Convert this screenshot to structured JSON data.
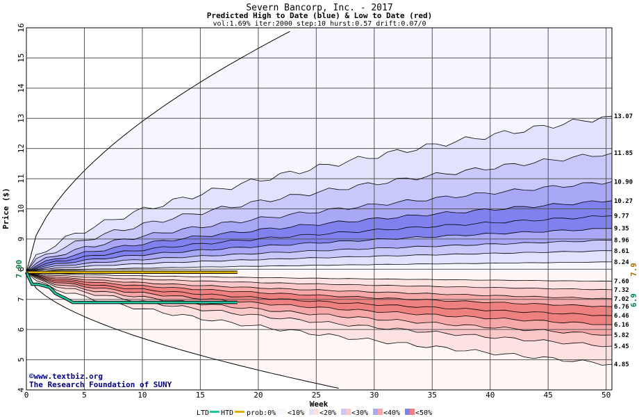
{
  "chart_data": {
    "type": "area",
    "title": "Severn Bancorp, Inc. - 2017",
    "subtitle": "Predicted High to Date (blue) &  Low to Date (red)",
    "params": "vol:1.69% iter:2000 step:10 hurst:0.57 drift:0.07/0",
    "xlabel": "Week",
    "ylabel": "Price ($)",
    "xlim": [
      0,
      50.5
    ],
    "ylim": [
      4,
      16
    ],
    "x_ticks": [
      "0",
      "5",
      "10",
      "15",
      "20",
      "25",
      "30",
      "35",
      "40",
      "45",
      "50"
    ],
    "y_ticks": [
      "4",
      "5",
      "6",
      "7",
      "8",
      "9",
      "10",
      "11",
      "12",
      "13",
      "14",
      "15",
      "16"
    ],
    "start_price": 7.9,
    "start_label": "7.90",
    "high_percentile_endpoints": [
      {
        "label": "13.07",
        "value": 13.07
      },
      {
        "label": "11.85",
        "value": 11.85
      },
      {
        "label": "10.90",
        "value": 10.9
      },
      {
        "label": "10.27",
        "value": 10.27
      },
      {
        "label": "9.77",
        "value": 9.77
      },
      {
        "label": "9.35",
        "value": 9.35
      },
      {
        "label": "8.96",
        "value": 8.96
      },
      {
        "label": "8.61",
        "value": 8.61
      },
      {
        "label": "8.24",
        "value": 8.24
      }
    ],
    "low_percentile_endpoints": [
      {
        "label": "7.60",
        "value": 7.6
      },
      {
        "label": "7.32",
        "value": 7.32
      },
      {
        "label": "7.02",
        "value": 7.02
      },
      {
        "label": "6.76",
        "value": 6.76
      },
      {
        "label": "6.46",
        "value": 6.46
      },
      {
        "label": "6.16",
        "value": 6.16
      },
      {
        "label": "5.82",
        "value": 5.82
      },
      {
        "label": "5.45",
        "value": 5.45
      },
      {
        "label": "4.85",
        "value": 4.85
      }
    ],
    "outer_high_end": 16,
    "outer_low_end": 4,
    "htd_series": {
      "name": "HTD",
      "color": "#e0b000",
      "x": [
        0,
        18.2
      ],
      "y": [
        7.9,
        7.9
      ],
      "label": "7.9"
    },
    "ltd_series": {
      "name": "LTD",
      "color": "#20c8a0",
      "x": [
        0,
        0.5,
        1,
        2,
        2.5,
        3,
        3.3,
        4,
        18.2
      ],
      "y": [
        7.9,
        7.5,
        7.5,
        7.4,
        7.2,
        7.1,
        7.05,
        6.9,
        6.9
      ],
      "label": "6.9"
    },
    "legend": {
      "ltd": "LTD",
      "htd": "HTD",
      "prob": "prob:0%",
      "items": [
        "<10%",
        "<20%",
        "<30%",
        "<40%",
        "<50%"
      ],
      "blue_colors": [
        "#f6f6ff",
        "#e2e2fd",
        "#c8c8fa",
        "#a8a8f6",
        "#8080ee"
      ],
      "red_colors": [
        "#fff6f6",
        "#fde2e2",
        "#fac8c8",
        "#f6a8a8",
        "#ee8080"
      ]
    },
    "credit1": "©www.textbiz.org",
    "credit2": "The Research Foundation of SUNY",
    "grid": true
  }
}
